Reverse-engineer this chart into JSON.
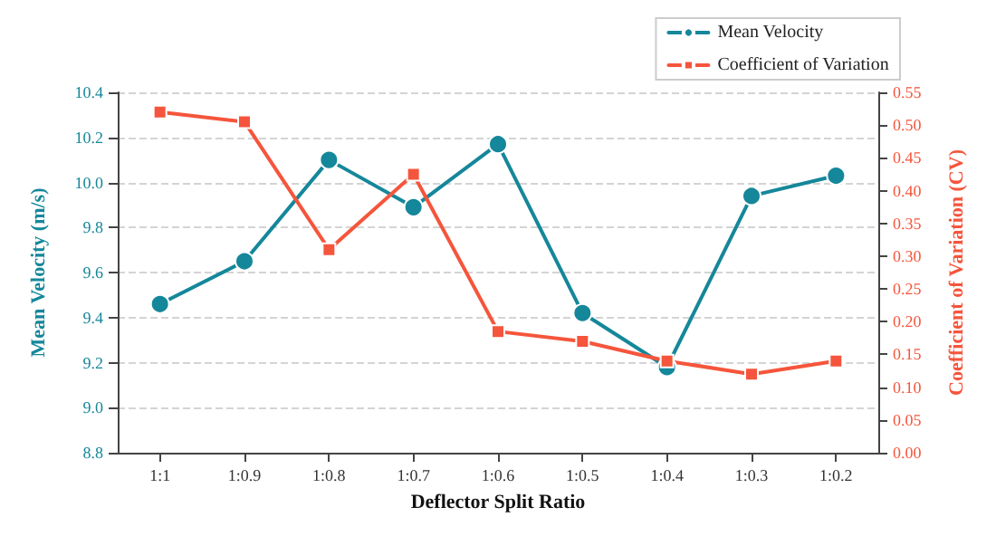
{
  "chart_data": {
    "type": "line",
    "xlabel": "Deflector Split Ratio",
    "ylabel": "Mean Velocity (m/s)",
    "y2label": "Coefficient of Variation (CV)",
    "categories": [
      "1:1",
      "1:0.9",
      "1:0.8",
      "1:0.7",
      "1:0.6",
      "1:0.5",
      "1:0.4",
      "1:0.3",
      "1:0.2"
    ],
    "series": [
      {
        "name": "Mean Velocity",
        "color": "#15879a",
        "marker": "circle",
        "values": [
          9.46,
          9.65,
          10.1,
          9.89,
          10.17,
          9.42,
          9.18,
          9.94,
          10.03
        ]
      },
      {
        "name": "Coefficient of Variation",
        "color": "#f5553c",
        "marker": "square",
        "axis": "y2",
        "values": [
          0.52,
          0.505,
          0.31,
          0.425,
          0.185,
          0.17,
          0.14,
          0.12,
          0.14
        ]
      }
    ],
    "ylim": [
      8.8,
      10.4
    ],
    "yticks": [
      {
        "value": 8.8,
        "label": "8.8"
      },
      {
        "value": 9.0,
        "label": "9.0"
      },
      {
        "value": 9.2,
        "label": "9.2"
      },
      {
        "value": 9.4,
        "label": "9.4"
      },
      {
        "value": 9.6,
        "label": "9.6"
      },
      {
        "value": 9.8,
        "label": "9.8"
      },
      {
        "value": 10.0,
        "label": "10.0"
      },
      {
        "value": 10.2,
        "label": "10.2"
      },
      {
        "value": 10.4,
        "label": "10.4"
      }
    ],
    "y2lim": [
      0,
      0.55
    ],
    "y2ticks": [
      {
        "value": 0,
        "label": "0.00"
      },
      {
        "value": 0.05,
        "label": "0.05"
      },
      {
        "value": 0.1,
        "label": "0.10"
      },
      {
        "value": 0.15,
        "label": "0.15"
      },
      {
        "value": 0.2,
        "label": "0.20"
      },
      {
        "value": 0.25,
        "label": "0.25"
      },
      {
        "value": 0.3,
        "label": "0.30"
      },
      {
        "value": 0.35,
        "label": "0.35"
      },
      {
        "value": 0.4,
        "label": "0.40"
      },
      {
        "value": 0.45,
        "label": "0.45"
      },
      {
        "value": 0.5,
        "label": "0.50"
      },
      {
        "value": 0.55,
        "label": "0.55"
      }
    ],
    "grid": "y",
    "legend": "top right",
    "line_style": "solid"
  }
}
